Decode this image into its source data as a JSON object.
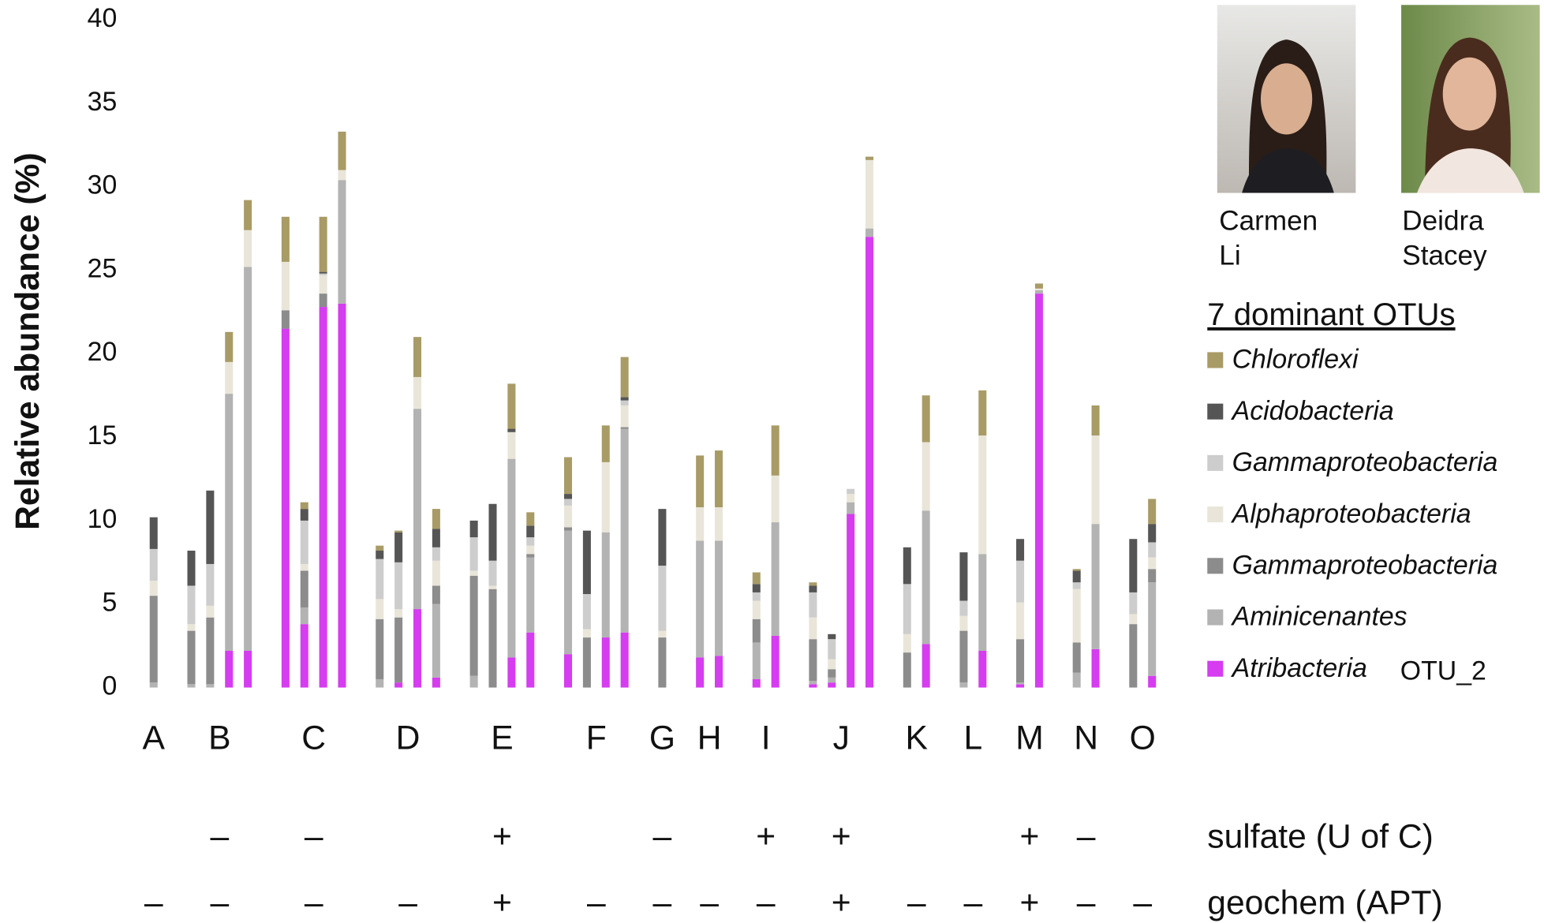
{
  "chart_data": {
    "type": "stacked-bar",
    "ylabel": "Relative abundance (%)",
    "ylim": [
      0,
      40
    ],
    "yticks": [
      0,
      5,
      10,
      15,
      20,
      25,
      30,
      35,
      40
    ],
    "legend_title": "7 dominant OTUs",
    "people": [
      {
        "name": [
          "Carmen",
          "Li"
        ]
      },
      {
        "name": [
          "Deidra",
          "Stacey"
        ]
      }
    ],
    "row_labels": {
      "sulfate": "sulfate (U of C)",
      "geochem": "geochem (APT)"
    },
    "groups": [
      {
        "label": "A",
        "bars": 1,
        "geochem": "–"
      },
      {
        "label": "B",
        "bars": 4,
        "sulfate": "–",
        "geochem": "–"
      },
      {
        "label": "C",
        "bars": 4,
        "sulfate": "–",
        "geochem": "–"
      },
      {
        "label": "D",
        "bars": 4,
        "geochem": "–"
      },
      {
        "label": "E",
        "bars": 4,
        "sulfate": "+",
        "geochem": "+"
      },
      {
        "label": "F",
        "bars": 4,
        "geochem": "–"
      },
      {
        "label": "G",
        "bars": 1,
        "sulfate": "–",
        "geochem": "–"
      },
      {
        "label": "H",
        "bars": 2,
        "geochem": "–"
      },
      {
        "label": "I",
        "bars": 2,
        "sulfate": "+",
        "geochem": "–"
      },
      {
        "label": "J",
        "bars": 4,
        "sulfate": "+",
        "geochem": "+"
      },
      {
        "label": "K",
        "bars": 2,
        "geochem": "–"
      },
      {
        "label": "L",
        "bars": 2,
        "geochem": "–"
      },
      {
        "label": "M",
        "bars": 2,
        "sulfate": "+",
        "geochem": "+"
      },
      {
        "label": "N",
        "bars": 2,
        "sulfate": "–",
        "geochem": "–"
      },
      {
        "label": "O",
        "bars": 2,
        "geochem": "–"
      }
    ],
    "series": [
      {
        "name": "Atribacteria",
        "suffix": "OTU_2",
        "color": "#d63cf0",
        "values": [
          0,
          0,
          0,
          2.2,
          2.2,
          21.5,
          3.8,
          22.8,
          23.0,
          0,
          0.3,
          4.7,
          0.6,
          0,
          0,
          1.8,
          3.3,
          2.0,
          0,
          3.0,
          3.3,
          0,
          1.8,
          1.9,
          0.5,
          3.1,
          0.2,
          0.3,
          10.4,
          27.0,
          0,
          2.6,
          0,
          2.2,
          0.2,
          23.6,
          0,
          2.3,
          0,
          0.7
        ]
      },
      {
        "name": "Aminicenantes",
        "color": "#b3b3b3",
        "values": [
          0.3,
          0.2,
          0.2,
          15.4,
          23.0,
          0,
          1.0,
          0,
          7.4,
          0.5,
          0,
          12.0,
          4.4,
          0.7,
          0,
          11.9,
          4.5,
          7.4,
          0,
          6.3,
          12.2,
          0,
          7.0,
          6.9,
          2.2,
          6.8,
          0.2,
          0.3,
          0.7,
          0.5,
          0,
          8.0,
          0.3,
          5.8,
          0.1,
          0.2,
          0.9,
          7.5,
          0,
          5.6
        ]
      },
      {
        "name": "Gammaproteobacteria",
        "color": "#8c8c8c",
        "values": [
          5.2,
          3.2,
          4.0,
          0,
          0,
          1.1,
          2.2,
          0.8,
          0,
          3.6,
          3.9,
          0,
          1.1,
          6.0,
          5.9,
          0,
          0.2,
          0.2,
          3.0,
          0,
          0.1,
          3.0,
          0,
          0,
          1.4,
          0,
          2.5,
          0.5,
          0,
          0,
          2.1,
          0,
          3.1,
          0,
          2.6,
          0,
          1.8,
          0,
          3.8,
          0.8
        ]
      },
      {
        "name": "Alphaproteobacteria",
        "color": "#e9e5d9",
        "values": [
          0.9,
          0.4,
          0.7,
          1.9,
          2.2,
          2.9,
          0.4,
          1.1,
          0.6,
          1.2,
          0.5,
          1.9,
          1.5,
          0.3,
          0.2,
          1.6,
          0.5,
          1.3,
          0.5,
          4.2,
          1.3,
          0.4,
          2.0,
          2.0,
          1.1,
          2.8,
          1.3,
          0.6,
          0.5,
          4.1,
          1.1,
          4.1,
          0.9,
          7.1,
          2.2,
          0.1,
          3.2,
          5.3,
          0.6,
          0.7
        ]
      },
      {
        "name": "Gammaproteobacteria",
        "color": "#cdcdcd",
        "values": [
          1.9,
          2.3,
          2.5,
          0,
          0,
          0,
          2.6,
          0.1,
          0,
          2.4,
          2.8,
          0,
          0.8,
          2.0,
          1.5,
          0,
          0.5,
          0.4,
          2.1,
          0,
          0.3,
          3.9,
          0,
          0,
          0.5,
          0,
          1.5,
          1.2,
          0.3,
          0,
          3.0,
          0,
          0.9,
          0,
          2.5,
          0,
          0.4,
          0,
          1.3,
          0.9
        ]
      },
      {
        "name": "Acidobacteria",
        "color": "#555555",
        "values": [
          1.9,
          2.1,
          4.4,
          0,
          0,
          0,
          0.7,
          0.1,
          0,
          0.5,
          1.8,
          0,
          1.1,
          1.0,
          3.4,
          0.2,
          0.7,
          0.3,
          3.8,
          0,
          0.2,
          3.4,
          0,
          0,
          0.5,
          0,
          0.4,
          0.3,
          0,
          0,
          2.2,
          0,
          2.9,
          0,
          1.3,
          0,
          0.7,
          0,
          3.2,
          1.1
        ]
      },
      {
        "name": "Chloroflexi",
        "color": "#a99b66",
        "values": [
          0,
          0,
          0,
          1.8,
          1.8,
          2.7,
          0.4,
          3.3,
          2.3,
          0.3,
          0.1,
          2.4,
          1.2,
          0,
          0,
          2.7,
          0.8,
          2.2,
          0,
          2.2,
          2.4,
          0,
          3.1,
          3.4,
          0.7,
          3.0,
          0.2,
          0,
          0,
          0.2,
          0,
          2.8,
          0,
          2.7,
          0,
          0.3,
          0.1,
          1.8,
          0,
          1.5
        ]
      }
    ]
  }
}
